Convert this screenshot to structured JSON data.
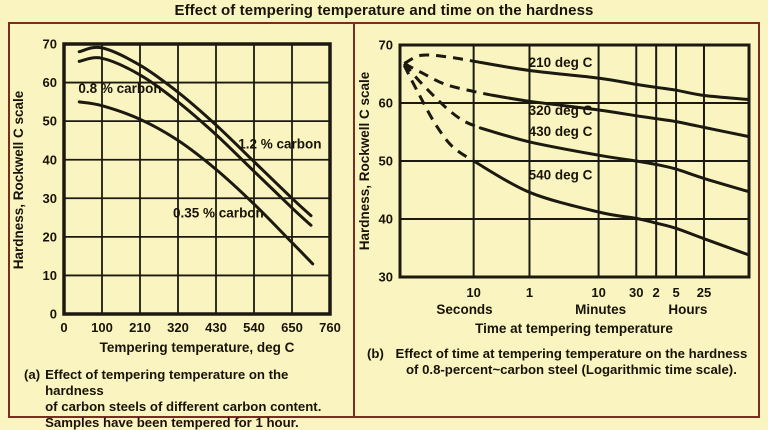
{
  "title": "Effect of tempering temperature and time on the hardness",
  "colors": {
    "background": "#faf5c0",
    "frame_border": "#7b2e1d",
    "ink": "#181306",
    "line": "#1c1a10"
  },
  "chart_data": [
    {
      "id": "a",
      "type": "line",
      "xlabel": "Tempering temperature, deg C",
      "ylabel": "Hardness, Rockwell C scale",
      "x_ticks": [
        0,
        100,
        210,
        320,
        430,
        540,
        650,
        760
      ],
      "y_ticks": [
        0,
        10,
        20,
        30,
        40,
        50,
        60,
        70
      ],
      "xlim": [
        0,
        760
      ],
      "ylim": [
        0,
        70
      ],
      "grid": true,
      "series": [
        {
          "name": "1.2 % carbon",
          "label_pos": {
            "x": 615,
            "y": 44
          },
          "points": [
            [
              40,
              68
            ],
            [
              100,
              69
            ],
            [
              210,
              64.5
            ],
            [
              320,
              57.5
            ],
            [
              430,
              49
            ],
            [
              540,
              39.5
            ],
            [
              650,
              30
            ],
            [
              705,
              25.5
            ]
          ]
        },
        {
          "name": "0.8 % carbon",
          "label_pos": {
            "x": 152,
            "y": 58.3
          },
          "points": [
            [
              40,
              65.5
            ],
            [
              100,
              66.3
            ],
            [
              210,
              62
            ],
            [
              320,
              55
            ],
            [
              430,
              46.5
            ],
            [
              540,
              37
            ],
            [
              650,
              27.5
            ],
            [
              705,
              23
            ]
          ]
        },
        {
          "name": "0.35 % carbon",
          "label_pos": {
            "x": 437,
            "y": 26
          },
          "points": [
            [
              40,
              55
            ],
            [
              100,
              54
            ],
            [
              210,
              50.5
            ],
            [
              320,
              45
            ],
            [
              430,
              37.5
            ],
            [
              540,
              28.5
            ],
            [
              650,
              18.5
            ],
            [
              710,
              13
            ]
          ]
        }
      ],
      "caption": {
        "prefix": "(a)",
        "lines": [
          "Effect of tempering temperature on the hardness",
          "of carbon steels of different carbon content.",
          "Samples have been tempered for 1 hour."
        ]
      }
    },
    {
      "id": "b",
      "type": "line",
      "xlabel": "Time at tempering temperature",
      "ylabel": "Hardness, Rockwell C scale",
      "x_scale": "logarithmic",
      "x_ticks": [
        {
          "label": "10",
          "pos": 0.211
        },
        {
          "label": "1",
          "pos": 0.371
        },
        {
          "label": "10",
          "pos": 0.569
        },
        {
          "label": "30",
          "pos": 0.677
        },
        {
          "label": "2",
          "pos": 0.734
        },
        {
          "label": "5",
          "pos": 0.791
        },
        {
          "label": "25",
          "pos": 0.871
        }
      ],
      "x_groups": [
        {
          "label": "Seconds",
          "pos": 0.185
        },
        {
          "label": "Minutes",
          "pos": 0.575
        },
        {
          "label": "Hours",
          "pos": 0.825
        }
      ],
      "y_ticks": [
        30,
        40,
        50,
        60,
        70
      ],
      "ylim": [
        30,
        70
      ],
      "grid": true,
      "series": [
        {
          "name": "210 deg C",
          "label_pos": {
            "x": 0.46,
            "y": 66.9
          },
          "dashed": [
            [
              0.012,
              66.8
            ],
            [
              0.06,
              68.2
            ],
            [
              0.13,
              68
            ],
            [
              0.211,
              67.2
            ]
          ],
          "solid": [
            [
              0.211,
              67.2
            ],
            [
              0.371,
              65.6
            ],
            [
              0.569,
              64.3
            ],
            [
              0.677,
              63.2
            ],
            [
              0.734,
              62.7
            ],
            [
              0.791,
              62.2
            ],
            [
              0.871,
              61.3
            ],
            [
              1,
              60.6
            ]
          ]
        },
        {
          "name": "320 deg C",
          "label_pos": {
            "x": 0.46,
            "y": 58.6
          },
          "dashed": [
            [
              0.012,
              66.8
            ],
            [
              0.06,
              65.3
            ],
            [
              0.13,
              63.2
            ],
            [
              0.211,
              62
            ],
            [
              0.25,
              61.5
            ]
          ],
          "solid": [
            [
              0.25,
              61.5
            ],
            [
              0.371,
              60.3
            ],
            [
              0.569,
              58.8
            ],
            [
              0.677,
              57.8
            ],
            [
              0.734,
              57.3
            ],
            [
              0.791,
              56.8
            ],
            [
              0.871,
              55.8
            ],
            [
              1,
              54.2
            ]
          ]
        },
        {
          "name": "430 deg C",
          "label_pos": {
            "x": 0.46,
            "y": 55
          },
          "dashed": [
            [
              0.012,
              66.8
            ],
            [
              0.06,
              63.5
            ],
            [
              0.13,
              59.3
            ],
            [
              0.18,
              57
            ],
            [
              0.23,
              55.7
            ]
          ],
          "solid": [
            [
              0.23,
              55.7
            ],
            [
              0.371,
              53.3
            ],
            [
              0.569,
              51
            ],
            [
              0.677,
              50
            ],
            [
              0.734,
              49.4
            ],
            [
              0.791,
              48.6
            ],
            [
              0.871,
              47
            ],
            [
              1,
              44.7
            ]
          ]
        },
        {
          "name": "540 deg C",
          "label_pos": {
            "x": 0.46,
            "y": 47.5
          },
          "dashed": [
            [
              0.012,
              66.5
            ],
            [
              0.05,
              62
            ],
            [
              0.1,
              56.5
            ],
            [
              0.15,
              52.5
            ],
            [
              0.211,
              50
            ]
          ],
          "solid": [
            [
              0.211,
              50
            ],
            [
              0.371,
              44.6
            ],
            [
              0.569,
              41.2
            ],
            [
              0.677,
              40.1
            ],
            [
              0.734,
              39.3
            ],
            [
              0.791,
              38.4
            ],
            [
              0.871,
              36.6
            ],
            [
              1,
              33.8
            ]
          ]
        }
      ],
      "caption": {
        "prefix": "(b)",
        "lines": [
          "Effect of time at tempering temperature on the hardness",
          "of 0.8-percent~carbon steel (Logarithmic time scale)."
        ]
      }
    }
  ]
}
